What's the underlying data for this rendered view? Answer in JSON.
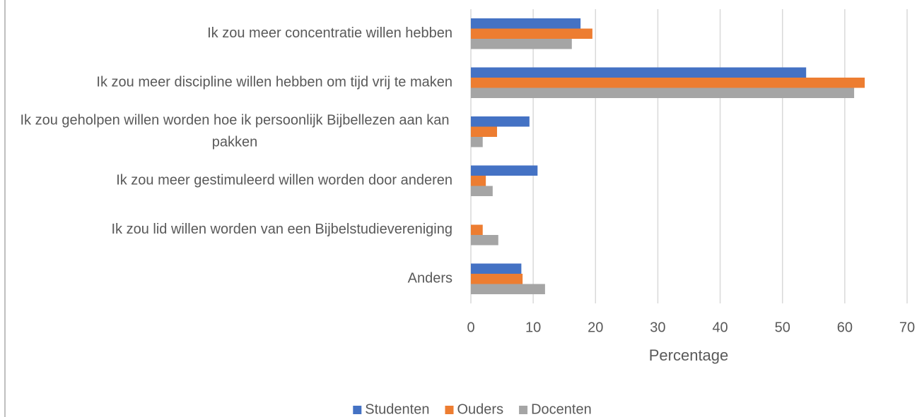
{
  "chart_data": {
    "type": "barh",
    "xlabel": "Percentage",
    "categories": [
      "Ik zou meer concentratie willen hebben",
      "Ik zou meer discipline willen hebben om tijd vrij te maken",
      "Ik zou geholpen willen worden hoe ik persoonlijk Bijbellezen aan kan pakken",
      "Ik zou meer gestimuleerd willen worden door anderen",
      "Ik zou lid willen worden van een Bijbelstudievereniging",
      "Anders"
    ],
    "series": [
      {
        "name": "Studenten",
        "color": "#4472c4",
        "values": [
          17.6,
          53.8,
          9.4,
          10.7,
          0,
          8.1
        ]
      },
      {
        "name": "Ouders",
        "color": "#ed7d31",
        "values": [
          19.5,
          63.2,
          4.2,
          2.4,
          1.9,
          8.3
        ]
      },
      {
        "name": "Docenten",
        "color": "#a5a5a5",
        "values": [
          16.2,
          61.5,
          1.9,
          3.5,
          4.4,
          11.9
        ]
      }
    ],
    "xlim": [
      0,
      70
    ],
    "xticks": [
      0,
      10,
      20,
      30,
      40,
      50,
      60,
      70
    ],
    "grid": true,
    "legend": "bottom"
  }
}
